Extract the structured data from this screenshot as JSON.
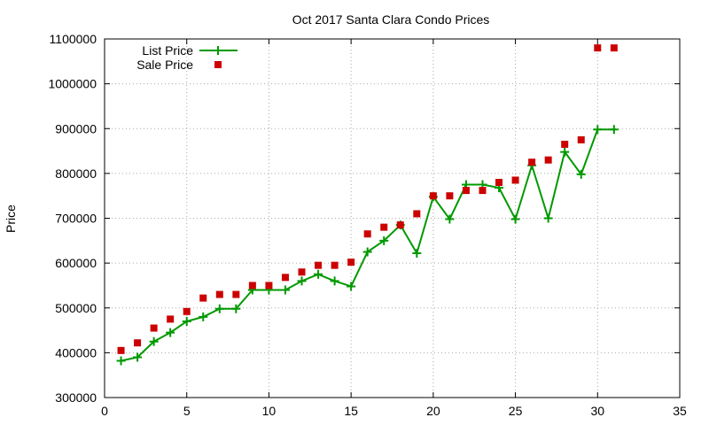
{
  "chart_data": {
    "type": "line",
    "title": "Oct 2017 Santa Clara Condo Prices",
    "xlabel": "",
    "ylabel": "Price",
    "xlim": [
      0,
      35
    ],
    "ylim": [
      300000,
      1100000
    ],
    "xticks": [
      0,
      5,
      10,
      15,
      20,
      25,
      30,
      35
    ],
    "yticks": [
      300000,
      400000,
      500000,
      600000,
      700000,
      800000,
      900000,
      1000000,
      1100000
    ],
    "grid": true,
    "legend_position": "top-left",
    "series": [
      {
        "name": "List Price",
        "style": "line+plus",
        "color": "#009900",
        "x": [
          1,
          2,
          3,
          4,
          5,
          6,
          7,
          8,
          9,
          10,
          11,
          12,
          13,
          14,
          15,
          16,
          17,
          18,
          19,
          20,
          21,
          22,
          23,
          24,
          25,
          26,
          27,
          28,
          29,
          30,
          31
        ],
        "y": [
          382000,
          390000,
          425000,
          445000,
          470000,
          480000,
          498000,
          498000,
          540000,
          540000,
          540000,
          560000,
          575000,
          560000,
          548000,
          625000,
          650000,
          685000,
          622000,
          748000,
          698000,
          775000,
          775000,
          768000,
          698000,
          818000,
          700000,
          848000,
          798000,
          898000,
          898000
        ]
      },
      {
        "name": "Sale Price",
        "style": "square-marker",
        "color": "#cc0000",
        "x": [
          1,
          2,
          3,
          4,
          5,
          6,
          7,
          8,
          9,
          10,
          11,
          12,
          13,
          14,
          15,
          16,
          17,
          18,
          19,
          20,
          21,
          22,
          23,
          24,
          25,
          26,
          27,
          28,
          29,
          30,
          31
        ],
        "y": [
          405000,
          422000,
          455000,
          475000,
          492000,
          522000,
          530000,
          530000,
          550000,
          550000,
          568000,
          580000,
          595000,
          595000,
          602000,
          665000,
          680000,
          685000,
          710000,
          750000,
          750000,
          762000,
          762000,
          780000,
          785000,
          825000,
          830000,
          865000,
          875000,
          1080000,
          1080000
        ]
      }
    ]
  }
}
